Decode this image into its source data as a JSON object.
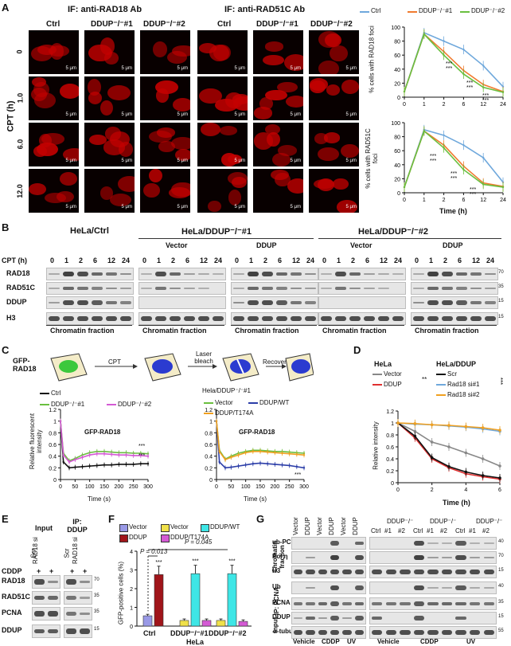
{
  "panelA": {
    "letter": "A",
    "if_rad18": "IF: anti-RAD18 Ab",
    "if_rad51c": "IF: anti-RAD51C Ab",
    "col_labels": [
      "Ctrl",
      "DDUP⁻/⁻#1",
      "DDUP⁻/⁻#2"
    ],
    "row_axis": "CPT (h)",
    "rows": [
      "0",
      "1.0",
      "6.0",
      "12.0"
    ],
    "scale": "5 μm",
    "legend": [
      "Ctrl",
      "DDUP⁻/⁻#1",
      "DDUP⁻/⁻#2"
    ],
    "chart1_ylabel": "% cells with RAD18 foci",
    "chart2_ylabel": "% cells with RAD51C foci",
    "xlabel": "Time (h)",
    "sig": "***"
  },
  "panelB": {
    "letter": "B",
    "groups": [
      "HeLa/Ctrl",
      "HeLa/DDUP⁻/⁻#1",
      "HeLa/DDUP⁻/⁻#2"
    ],
    "subgroups": [
      "Vector",
      "DDUP",
      "Vector",
      "DDUP"
    ],
    "cpt_label": "CPT (h)",
    "timepoints": [
      "0",
      "1",
      "2",
      "6",
      "12",
      "24"
    ],
    "rows": [
      "RAD18",
      "RAD51C",
      "DDUP",
      "H3"
    ],
    "markers": [
      "70",
      "35",
      "15",
      "15"
    ],
    "fraction": "Chromatin fraction"
  },
  "panelC": {
    "letter": "C",
    "gfp": "GFP-RAD18",
    "cpt": "CPT",
    "laser": "Laser bleach",
    "recover": "Recover",
    "legend1": [
      "Ctrl",
      "DDUP⁻/⁻#1",
      "DDUP⁻/⁻#2"
    ],
    "legend2_title": "Hela/DDUP⁻/⁻#1",
    "legend2": [
      "Vector",
      "DDUP/WT",
      "DDUP/T174A"
    ],
    "ylabel": "Relative fluorescent intensity",
    "xlabel": "Time (s)",
    "chart_title": "GFP-RAD18",
    "sig": "***"
  },
  "panelD": {
    "letter": "D",
    "hela": "HeLa",
    "hela_ddup": "HeLa/DDUP",
    "legend_left": [
      "Vector",
      "DDUP"
    ],
    "legend_right": [
      "Scr",
      "Rad18 si#1",
      "Rad18 si#2"
    ],
    "ylabel": "Relative intensity",
    "xlabel": "Time (h)",
    "sig2": "**",
    "sig3": "***"
  },
  "panelE": {
    "letter": "E",
    "input": "Input",
    "ip": "IP: DDUP",
    "cols": [
      "Scr",
      "RAD18 si",
      "Scr",
      "RAD18 si"
    ],
    "cddp": "CDDP",
    "plus": "+",
    "rows": [
      "RAD18",
      "RAD51C",
      "PCNA",
      "DDUP"
    ],
    "markers": [
      "70",
      "35",
      "35",
      "15"
    ]
  },
  "panelF": {
    "letter": "F",
    "legend": [
      "Vector",
      "Vector",
      "DDUP/WT",
      "DDUP",
      "DDUP/T174A"
    ],
    "ylabel": "GFP-positive cells (%)",
    "p1": "P = 0.013",
    "p2": "P = 0.045",
    "groups": [
      "Ctrl",
      "DDUP⁻/⁻#1",
      "DDUP⁻/⁻#2"
    ],
    "cell": "HeLa",
    "sig": "***"
  },
  "panelG": {
    "letter": "G",
    "col_left": [
      "Vector",
      "DDUP",
      "Vector",
      "DDUP",
      "Vector",
      "DDUP"
    ],
    "ddup_ko": "DDUP⁻/⁻",
    "col_right": [
      "Ctrl",
      "#1",
      "#2"
    ],
    "chromatin": "Chromatin fraction",
    "ip_pcna": "IP: PCNA",
    "input": "Input",
    "rows": [
      "ub-PCNA",
      "Pol η",
      "H3",
      "Ub",
      "PCNA",
      "DDUP",
      "α-tubulin"
    ],
    "markers": [
      "40",
      "70",
      "15",
      "40",
      "35",
      "15",
      "55"
    ],
    "treat": [
      "Vehicle",
      "CDDP",
      "UV",
      "Vehicle",
      "CDDP",
      "UV"
    ]
  },
  "chart_data": [
    {
      "type": "line",
      "title": "",
      "ylabel": "% cells with RAD18 foci",
      "xlabel": "",
      "x": [
        0,
        1,
        2,
        6,
        12,
        24
      ],
      "ylim": [
        0,
        100
      ],
      "series": [
        {
          "name": "Ctrl",
          "values": [
            8,
            92,
            80,
            68,
            45,
            15
          ]
        },
        {
          "name": "DDUP⁻/⁻#1",
          "values": [
            8,
            90,
            65,
            38,
            18,
            8
          ]
        },
        {
          "name": "DDUP⁻/⁻#2",
          "values": [
            8,
            90,
            60,
            33,
            14,
            7
          ]
        }
      ]
    },
    {
      "type": "line",
      "title": "",
      "ylabel": "% cells with RAD51C foci",
      "xlabel": "Time (h)",
      "x": [
        0,
        1,
        2,
        6,
        12,
        24
      ],
      "ylim": [
        0,
        100
      ],
      "series": [
        {
          "name": "Ctrl",
          "values": [
            8,
            90,
            82,
            68,
            50,
            15
          ]
        },
        {
          "name": "DDUP⁻/⁻#1",
          "values": [
            8,
            88,
            68,
            38,
            14,
            9
          ]
        },
        {
          "name": "DDUP⁻/⁻#2",
          "values": [
            8,
            88,
            64,
            33,
            12,
            8
          ]
        }
      ]
    },
    {
      "type": "line",
      "title": "GFP-RAD18",
      "ylabel": "Relative fluorescent intensity",
      "xlabel": "Time (s)",
      "x": [
        0,
        10,
        30,
        50,
        75,
        100,
        125,
        150,
        175,
        200,
        225,
        250,
        275,
        300
      ],
      "ylim": [
        0,
        1.2
      ],
      "series": [
        {
          "name": "Ctrl",
          "values": [
            1,
            0.3,
            0.2,
            0.21,
            0.22,
            0.23,
            0.24,
            0.25,
            0.25,
            0.26,
            0.26,
            0.26,
            0.27,
            0.27
          ]
        },
        {
          "name": "DDUP⁻/⁻#1",
          "values": [
            1,
            0.45,
            0.32,
            0.36,
            0.42,
            0.46,
            0.48,
            0.48,
            0.47,
            0.46,
            0.46,
            0.45,
            0.45,
            0.44
          ]
        },
        {
          "name": "DDUP⁻/⁻#2",
          "values": [
            1,
            0.42,
            0.3,
            0.34,
            0.38,
            0.42,
            0.44,
            0.44,
            0.43,
            0.42,
            0.42,
            0.41,
            0.41,
            0.4
          ]
        }
      ]
    },
    {
      "type": "line",
      "title": "GFP-RAD18",
      "ylabel": "",
      "xlabel": "Time (s)",
      "x": [
        0,
        10,
        30,
        50,
        75,
        100,
        125,
        150,
        175,
        200,
        225,
        250,
        275,
        300
      ],
      "ylim": [
        0,
        1.2
      ],
      "series": [
        {
          "name": "Vector",
          "values": [
            1,
            0.5,
            0.35,
            0.4,
            0.45,
            0.48,
            0.5,
            0.5,
            0.49,
            0.48,
            0.48,
            0.47,
            0.46,
            0.45
          ]
        },
        {
          "name": "DDUP/WT",
          "values": [
            1,
            0.3,
            0.2,
            0.21,
            0.23,
            0.25,
            0.27,
            0.28,
            0.27,
            0.26,
            0.25,
            0.24,
            0.22,
            0.2
          ]
        },
        {
          "name": "DDUP/T174A",
          "values": [
            1,
            0.48,
            0.34,
            0.38,
            0.42,
            0.46,
            0.48,
            0.48,
            0.47,
            0.46,
            0.45,
            0.44,
            0.43,
            0.42
          ]
        }
      ]
    },
    {
      "type": "line",
      "title": "",
      "ylabel": "Relative intensity",
      "xlabel": "Time (h)",
      "x": [
        0,
        1,
        2,
        3,
        4,
        5,
        6
      ],
      "ylim": [
        0,
        1.2
      ],
      "series": [
        {
          "name": "Vector",
          "values": [
            1,
            0.86,
            0.68,
            0.6,
            0.5,
            0.4,
            0.28
          ]
        },
        {
          "name": "DDUP",
          "values": [
            1,
            0.75,
            0.4,
            0.25,
            0.15,
            0.1,
            0.06
          ]
        },
        {
          "name": "Scr",
          "values": [
            1,
            0.78,
            0.42,
            0.27,
            0.18,
            0.12,
            0.08
          ]
        },
        {
          "name": "Rad18 si#1",
          "values": [
            1,
            0.98,
            0.97,
            0.95,
            0.93,
            0.9,
            0.86
          ]
        },
        {
          "name": "Rad18 si#2",
          "values": [
            1,
            0.99,
            0.97,
            0.96,
            0.94,
            0.92,
            0.88
          ]
        }
      ]
    },
    {
      "type": "bar",
      "title": "",
      "ylabel": "GFP-positive cells (%)",
      "categories": [
        "Ctrl",
        "DDUP⁻/⁻#1",
        "DDUP⁻/⁻#2"
      ],
      "ylim": [
        0,
        4
      ],
      "series": [
        {
          "name": "Vector",
          "values": [
            0.55,
            0.3,
            0.3
          ]
        },
        {
          "name": "DDUP",
          "values": [
            2.75,
            null,
            null
          ]
        },
        {
          "name": "DDUP/WT",
          "values": [
            null,
            2.8,
            2.8
          ]
        },
        {
          "name": "DDUP/T174A",
          "values": [
            null,
            0.3,
            0.25
          ]
        }
      ]
    }
  ],
  "colors": {
    "ctrl": "#6fa8dc",
    "ko1": "#f07b2f",
    "ko2": "#6abf3f",
    "vec_f": "#9999e6",
    "ddup_f": "#a0151a",
    "vec2_f": "#f0e14a",
    "wt_f": "#3ee6e6",
    "t174_f": "#d45ad4",
    "gray": "#888888",
    "red": "#e03030",
    "black": "#111111",
    "blue": "#2c3ea8"
  }
}
